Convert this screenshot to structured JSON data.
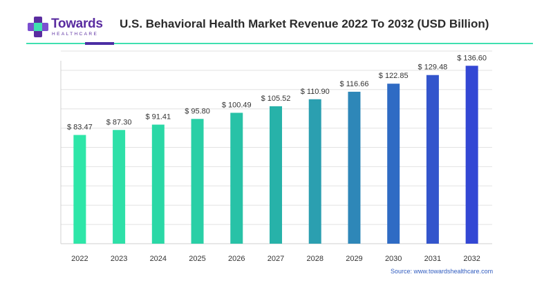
{
  "brand": {
    "name": "Towards",
    "subtitle": "HEALTHCARE",
    "colors": {
      "purple": "#5a2ca0",
      "teal": "#3fe0b0",
      "green": "#2ee6a8",
      "blue": "#2f4bd6"
    }
  },
  "header": {
    "title": "U.S. Behavioral Health Market Revenue 2022 To 2032 (USD Billion)"
  },
  "source": "Source: www.towardshealthcare.com",
  "chart_data": {
    "type": "bar",
    "title": "U.S. Behavioral Health Market Revenue 2022 To 2032 (USD Billion)",
    "xlabel": "",
    "ylabel": "",
    "categories": [
      "2022",
      "2023",
      "2024",
      "2025",
      "2026",
      "2027",
      "2028",
      "2029",
      "2030",
      "2031",
      "2032"
    ],
    "values": [
      83.47,
      87.3,
      91.41,
      95.8,
      100.49,
      105.52,
      110.9,
      116.66,
      122.85,
      129.48,
      136.6
    ],
    "data_labels": [
      "$ 83.47",
      "$ 87.30",
      "$ 91.41",
      "$ 95.80",
      "$ 100.49",
      "$ 105.52",
      "$ 110.90",
      "$ 116.66",
      "$ 122.85",
      "$ 129.48",
      "$ 136.60"
    ],
    "ylim": [
      0,
      150
    ],
    "grid": true,
    "legend": "none",
    "bar_colors": [
      "#2ee6a8",
      "#2ee0a8",
      "#2ad8a6",
      "#29cfa6",
      "#28c2a7",
      "#27b2a9",
      "#2b9fb0",
      "#2e87b8",
      "#2f6bc4",
      "#3355cc",
      "#3347d4"
    ]
  }
}
